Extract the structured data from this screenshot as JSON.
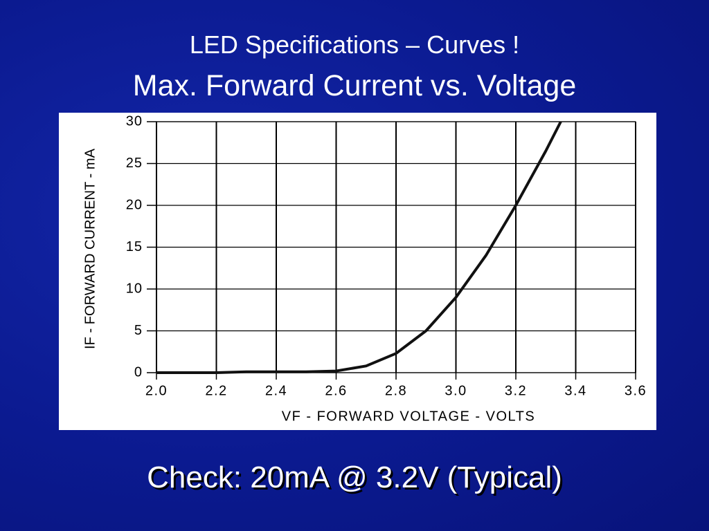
{
  "slide": {
    "title_lines": [
      "LED Specifications – Curves !",
      "Max. Forward Current vs. Voltage"
    ],
    "note": "Check:  20mA @ 3.2V (Typical)"
  },
  "chart_data": {
    "type": "line",
    "x_label": "VF - FORWARD VOLTAGE - VOLTS",
    "y_label": "IF - FORWARD CURRENT - mA",
    "x": [
      2.0,
      2.2,
      2.3,
      2.4,
      2.5,
      2.6,
      2.7,
      2.8,
      2.9,
      3.0,
      3.1,
      3.2,
      3.3,
      3.35
    ],
    "values": [
      0,
      0,
      0.1,
      0.1,
      0.1,
      0.2,
      0.8,
      2.3,
      5,
      9,
      14,
      20,
      26.5,
      30
    ],
    "color": "#111111",
    "xlim": [
      2.0,
      3.6
    ],
    "xticks": [
      {
        "value": 2,
        "label": "2.0"
      },
      2.2,
      2.4,
      2.6,
      2.8,
      {
        "value": 3,
        "label": "3.0"
      },
      3.2,
      3.4,
      3.6
    ],
    "ylim": [
      0,
      30
    ],
    "yticks": [
      0,
      5,
      10,
      15,
      20,
      25,
      30
    ],
    "grid": true
  }
}
